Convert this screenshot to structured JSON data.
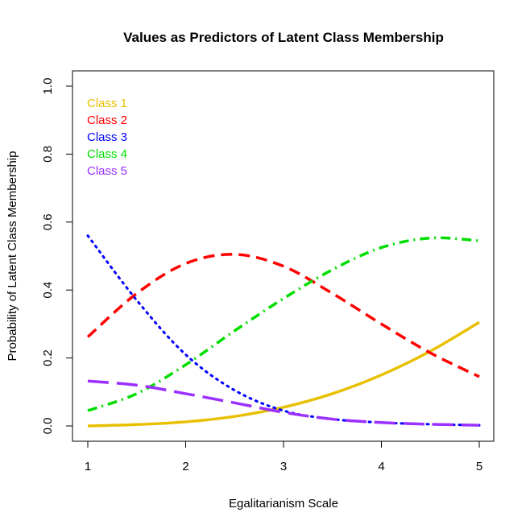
{
  "chart_data": {
    "type": "line",
    "title": "Values as Predictors of Latent Class Membership",
    "xlabel": "Egalitarianism Scale",
    "ylabel": "Probability of Latent Class Membership",
    "xlim": [
      1,
      5
    ],
    "ylim": [
      0,
      1
    ],
    "x_ticks": [
      "1",
      "2",
      "3",
      "4",
      "5"
    ],
    "y_ticks": [
      "0.0",
      "0.2",
      "0.4",
      "0.6",
      "0.8",
      "1.0"
    ],
    "grid": false,
    "legend_position": "top-left",
    "x": [
      1.0,
      1.5,
      2.0,
      2.5,
      3.0,
      3.5,
      4.0,
      4.5,
      5.0
    ],
    "series": [
      {
        "name": "Class 1",
        "color": "#E8C000",
        "dash": "solid",
        "values": [
          0.0,
          0.004,
          0.012,
          0.028,
          0.055,
          0.095,
          0.15,
          0.22,
          0.305
        ]
      },
      {
        "name": "Class 2",
        "color": "#FF0000",
        "dash": "dashed",
        "values": [
          0.262,
          0.39,
          0.478,
          0.505,
          0.47,
          0.39,
          0.3,
          0.215,
          0.145
        ]
      },
      {
        "name": "Class 3",
        "color": "#0000FF",
        "dash": "dotted",
        "values": [
          0.56,
          0.37,
          0.21,
          0.105,
          0.045,
          0.02,
          0.01,
          0.005,
          0.002
        ]
      },
      {
        "name": "Class 4",
        "color": "#00DD00",
        "dash": "dashdot",
        "values": [
          0.045,
          0.095,
          0.18,
          0.28,
          0.375,
          0.46,
          0.525,
          0.553,
          0.545
        ]
      },
      {
        "name": "Class 5",
        "color": "#9B30FF",
        "dash": "longdash",
        "values": [
          0.132,
          0.12,
          0.095,
          0.068,
          0.04,
          0.02,
          0.01,
          0.005,
          0.002
        ]
      }
    ]
  }
}
